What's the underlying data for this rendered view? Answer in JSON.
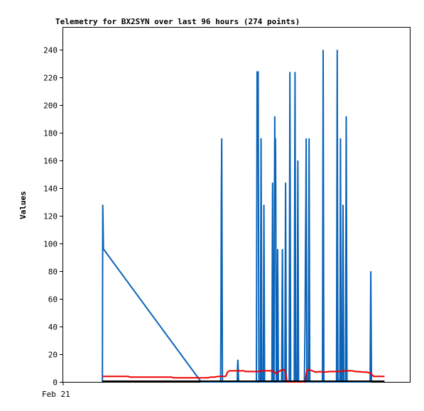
{
  "chart_data": {
    "type": "line",
    "title": "Telemetry for BX2SYN over last 96 hours (274 points)",
    "ylabel": "Values",
    "xlabel": "",
    "x_tick_labels": [
      {
        "label": "Feb 21",
        "t": 0
      }
    ],
    "x_range": [
      0,
      96
    ],
    "ylim": [
      0,
      256
    ],
    "y_ticks": [
      0,
      20,
      40,
      60,
      80,
      100,
      120,
      140,
      160,
      180,
      200,
      220,
      240
    ],
    "grid": false,
    "legend": "none",
    "colors": {
      "blue_series": "#0b63b8",
      "red_series": "#ee0000",
      "black_series": "#000000",
      "axes": "#000000"
    },
    "series": [
      {
        "color": "#0b63b8",
        "points": [
          [
            10.85,
            0
          ],
          [
            10.9,
            64
          ],
          [
            10.95,
            128
          ],
          [
            11.05,
            112
          ],
          [
            11.15,
            96
          ],
          [
            38.2,
            0
          ],
          [
            43.6,
            0
          ],
          [
            43.7,
            44
          ],
          [
            43.8,
            132
          ],
          [
            43.9,
            176
          ],
          [
            44.0,
            88
          ],
          [
            44.1,
            0
          ],
          [
            48.2,
            0
          ],
          [
            48.3,
            12
          ],
          [
            48.4,
            16
          ],
          [
            48.5,
            8
          ],
          [
            48.6,
            0
          ],
          [
            53.5,
            0
          ],
          [
            53.6,
            112
          ],
          [
            53.7,
            224
          ],
          [
            54.0,
            224
          ],
          [
            54.1,
            112
          ],
          [
            54.2,
            0
          ],
          [
            54.6,
            0
          ],
          [
            54.7,
            88
          ],
          [
            54.8,
            176
          ],
          [
            54.9,
            88
          ],
          [
            55.0,
            0
          ],
          [
            55.4,
            0
          ],
          [
            55.5,
            48
          ],
          [
            55.6,
            128
          ],
          [
            55.7,
            64
          ],
          [
            55.8,
            0
          ],
          [
            57.8,
            0
          ],
          [
            57.9,
            72
          ],
          [
            58.0,
            144
          ],
          [
            58.1,
            72
          ],
          [
            58.2,
            0
          ],
          [
            58.4,
            0
          ],
          [
            58.5,
            128
          ],
          [
            58.6,
            192
          ],
          [
            58.7,
            128
          ],
          [
            58.8,
            176
          ],
          [
            58.9,
            128
          ],
          [
            59.0,
            0
          ],
          [
            59.2,
            0
          ],
          [
            59.3,
            48
          ],
          [
            59.4,
            96
          ],
          [
            59.5,
            48
          ],
          [
            59.6,
            0
          ],
          [
            60.5,
            0
          ],
          [
            60.6,
            48
          ],
          [
            60.7,
            96
          ],
          [
            60.8,
            48
          ],
          [
            60.9,
            0
          ],
          [
            61.4,
            0
          ],
          [
            61.5,
            72
          ],
          [
            61.6,
            144
          ],
          [
            61.7,
            72
          ],
          [
            61.8,
            0
          ],
          [
            62.6,
            0
          ],
          [
            62.7,
            112
          ],
          [
            62.8,
            224
          ],
          [
            62.9,
            112
          ],
          [
            63.0,
            0
          ],
          [
            64.0,
            0
          ],
          [
            64.1,
            112
          ],
          [
            64.2,
            224
          ],
          [
            64.3,
            112
          ],
          [
            64.4,
            0
          ],
          [
            64.8,
            0
          ],
          [
            64.9,
            80
          ],
          [
            65.0,
            160
          ],
          [
            65.1,
            80
          ],
          [
            65.2,
            0
          ],
          [
            66.8,
            0
          ],
          [
            66.9,
            24
          ],
          [
            67.0,
            48
          ],
          [
            67.1,
            96
          ],
          [
            67.2,
            128
          ],
          [
            67.3,
            176
          ],
          [
            67.4,
            88
          ],
          [
            67.5,
            0
          ],
          [
            67.9,
            0
          ],
          [
            68.0,
            88
          ],
          [
            68.1,
            176
          ],
          [
            68.2,
            88
          ],
          [
            68.3,
            0
          ],
          [
            71.8,
            0
          ],
          [
            71.9,
            120
          ],
          [
            72.0,
            240
          ],
          [
            72.1,
            120
          ],
          [
            72.2,
            0
          ],
          [
            75.7,
            0
          ],
          [
            75.8,
            120
          ],
          [
            75.9,
            240
          ],
          [
            76.0,
            120
          ],
          [
            76.1,
            0
          ],
          [
            76.6,
            0
          ],
          [
            76.7,
            64
          ],
          [
            76.8,
            176
          ],
          [
            76.9,
            88
          ],
          [
            77.0,
            0
          ],
          [
            77.3,
            0
          ],
          [
            77.4,
            64
          ],
          [
            77.5,
            128
          ],
          [
            77.6,
            64
          ],
          [
            77.7,
            0
          ],
          [
            78.2,
            0
          ],
          [
            78.3,
            96
          ],
          [
            78.4,
            192
          ],
          [
            78.5,
            96
          ],
          [
            78.6,
            0
          ],
          [
            85.0,
            0
          ],
          [
            85.1,
            40
          ],
          [
            85.2,
            80
          ],
          [
            85.3,
            40
          ],
          [
            85.4,
            0
          ]
        ]
      },
      {
        "color": "#ee0000",
        "points": [
          [
            10.85,
            4
          ],
          [
            18,
            4
          ],
          [
            18.5,
            3.5
          ],
          [
            30,
            3.5
          ],
          [
            30.5,
            3
          ],
          [
            40,
            3
          ],
          [
            41,
            3.5
          ],
          [
            42,
            3.5
          ],
          [
            43,
            4
          ],
          [
            45,
            4
          ],
          [
            45.5,
            7
          ],
          [
            46,
            8
          ],
          [
            50,
            8
          ],
          [
            50.5,
            7.5
          ],
          [
            54,
            7.5
          ],
          [
            55,
            8
          ],
          [
            58,
            8
          ],
          [
            59,
            6
          ],
          [
            60,
            8
          ],
          [
            61,
            9
          ],
          [
            61.5,
            8
          ],
          [
            62,
            0
          ],
          [
            67,
            0
          ],
          [
            67.5,
            8.5
          ],
          [
            68,
            9
          ],
          [
            69,
            8
          ],
          [
            70,
            7
          ],
          [
            71,
            7.5
          ],
          [
            72,
            7
          ],
          [
            74,
            7.5
          ],
          [
            77,
            7.5
          ],
          [
            78,
            8
          ],
          [
            80,
            8
          ],
          [
            81,
            7.5
          ],
          [
            84,
            7
          ],
          [
            85,
            6.5
          ],
          [
            86,
            4
          ],
          [
            89,
            4
          ]
        ]
      },
      {
        "color": "#000000",
        "points": [
          [
            10.85,
            0.5
          ],
          [
            89,
            0.5
          ]
        ]
      }
    ]
  }
}
